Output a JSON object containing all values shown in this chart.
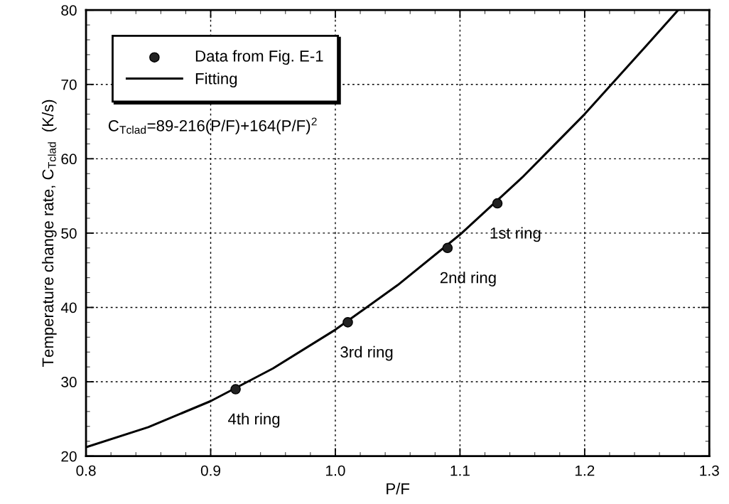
{
  "chart_data": {
    "type": "scatter",
    "xlabel": "P/F",
    "ylabel": "Temperature change rate, C$_{Tclad}$  (K/s)",
    "xlim": [
      0.8,
      1.3
    ],
    "xticks": [
      {
        "value": 0.8,
        "label": "0.8"
      },
      {
        "value": 0.9,
        "label": "0.9"
      },
      {
        "value": 1.0,
        "label": "1.0"
      },
      {
        "value": 1.1,
        "label": "1.1"
      },
      {
        "value": 1.2,
        "label": "1.2"
      },
      {
        "value": 1.3,
        "label": "1.3"
      }
    ],
    "ylim": [
      20,
      80
    ],
    "yticks": [
      20,
      30,
      40,
      50,
      60,
      70,
      80
    ],
    "grid": true,
    "legend": "top left",
    "series": [
      {
        "name": "Data from Fig. E-1",
        "marker": "circle",
        "color": "#222222",
        "x": [
          0.92,
          1.01,
          1.09,
          1.13
        ],
        "values": [
          29,
          38,
          48,
          54
        ]
      },
      {
        "name": "Fitting",
        "type": "line",
        "marker": "none",
        "line_style": "solid",
        "color": "#000000",
        "x": [
          0.8,
          0.85,
          0.9,
          0.95,
          1.0,
          1.05,
          1.1,
          1.15,
          1.2,
          1.25,
          1.275
        ],
        "values": [
          21.2,
          23.9,
          27.4,
          31.8,
          37.0,
          43.0,
          49.8,
          57.5,
          66.0,
          75.3,
          80
        ]
      }
    ],
    "annotations": [
      {
        "text": "4th ring",
        "x": 0.92,
        "y": 29
      },
      {
        "text": "3rd ring",
        "x": 1.01,
        "y": 38
      },
      {
        "text": "2nd ring",
        "x": 1.09,
        "y": 48
      },
      {
        "text": "1st ring",
        "x": 1.13,
        "y": 54
      },
      "C$_{Tclad}$=89-216(P/F)+164(P/F)$^{2}$"
    ]
  }
}
